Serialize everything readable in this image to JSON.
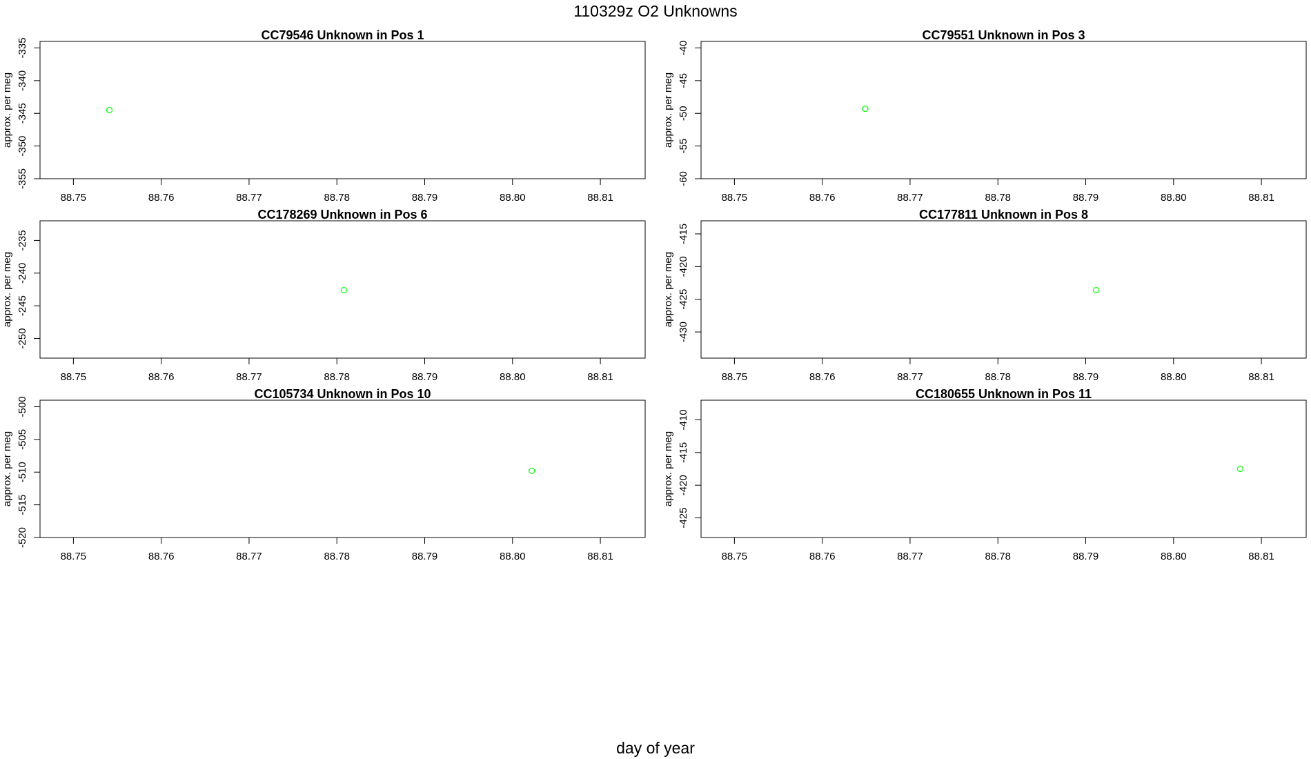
{
  "figure": {
    "title": "110329z  O2 Unknowns",
    "xlabel": "day of year"
  },
  "chart_data": [
    {
      "type": "scatter",
      "title": "CC79546    Unknown in Pos 1",
      "xlabel": "",
      "ylabel": "approx. per meg",
      "xlim": [
        88.7462,
        88.8151
      ],
      "ylim": [
        -355,
        -334
      ],
      "xticks": [
        "88.75",
        "88.76",
        "88.77",
        "88.78",
        "88.79",
        "88.80",
        "88.81"
      ],
      "yticks": [
        "-335",
        "-340",
        "-345",
        "-350",
        "-355"
      ],
      "color": "#00ff00",
      "points": [
        {
          "x": 88.7541,
          "y": -344.5
        }
      ]
    },
    {
      "type": "scatter",
      "title": "CC79551    Unknown in Pos 3",
      "xlabel": "",
      "ylabel": "approx. per meg",
      "xlim": [
        88.7462,
        88.8151
      ],
      "ylim": [
        -60,
        -39
      ],
      "xticks": [
        "88.75",
        "88.76",
        "88.77",
        "88.78",
        "88.79",
        "88.80",
        "88.81"
      ],
      "yticks": [
        "-40",
        "-45",
        "-50",
        "-55",
        "-60"
      ],
      "color": "#00ff00",
      "points": [
        {
          "x": 88.7649,
          "y": -49.3
        }
      ]
    },
    {
      "type": "scatter",
      "title": "CC178269    Unknown in Pos 6",
      "xlabel": "",
      "ylabel": "approx. per meg",
      "xlim": [
        88.7462,
        88.8151
      ],
      "ylim": [
        -253,
        -232
      ],
      "xticks": [
        "88.75",
        "88.76",
        "88.77",
        "88.78",
        "88.79",
        "88.80",
        "88.81"
      ],
      "yticks": [
        "-235",
        "-240",
        "-245",
        "-250"
      ],
      "color": "#00ff00",
      "points": [
        {
          "x": 88.7808,
          "y": -242.6
        }
      ]
    },
    {
      "type": "scatter",
      "title": "CC177811    Unknown in Pos 8",
      "xlabel": "",
      "ylabel": "approx. per meg",
      "xlim": [
        88.7462,
        88.8151
      ],
      "ylim": [
        -434,
        -413
      ],
      "xticks": [
        "88.75",
        "88.76",
        "88.77",
        "88.78",
        "88.79",
        "88.80",
        "88.81"
      ],
      "yticks": [
        "-415",
        "-420",
        "-425",
        "-430"
      ],
      "color": "#00ff00",
      "points": [
        {
          "x": 88.7912,
          "y": -423.6
        }
      ]
    },
    {
      "type": "scatter",
      "title": "CC105734    Unknown in Pos 10",
      "xlabel": "",
      "ylabel": "approx. per meg",
      "xlim": [
        88.7462,
        88.8151
      ],
      "ylim": [
        -520,
        -499
      ],
      "xticks": [
        "88.75",
        "88.76",
        "88.77",
        "88.78",
        "88.79",
        "88.80",
        "88.81"
      ],
      "yticks": [
        "-500",
        "-505",
        "-510",
        "-515",
        "-520"
      ],
      "color": "#00ff00",
      "points": [
        {
          "x": 88.8022,
          "y": -509.8
        }
      ]
    },
    {
      "type": "scatter",
      "title": "CC180655    Unknown in Pos 11",
      "xlabel": "",
      "ylabel": "approx. per meg",
      "xlim": [
        88.7462,
        88.8151
      ],
      "ylim": [
        -428,
        -407
      ],
      "xticks": [
        "88.75",
        "88.76",
        "88.77",
        "88.78",
        "88.79",
        "88.80",
        "88.81"
      ],
      "yticks": [
        "-410",
        "-415",
        "-420",
        "-425"
      ],
      "color": "#00ff00",
      "points": [
        {
          "x": 88.8076,
          "y": -417.5
        }
      ]
    }
  ]
}
